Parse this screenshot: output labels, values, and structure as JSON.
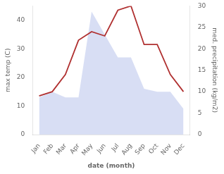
{
  "chart_data": {
    "type": "line",
    "xlabel": "date (month)",
    "ylabel": "max temp (C)",
    "y2label": "med. precipitation (kg/m2)",
    "categories": [
      "Jan",
      "Feb",
      "Mar",
      "Apr",
      "May",
      "Jun",
      "Jul",
      "Aug",
      "Sep",
      "Oct",
      "Nov",
      "Dec"
    ],
    "series": [
      {
        "type": "area",
        "color": "#c8d0f0",
        "values": [
          13,
          15,
          13,
          13,
          43,
          35,
          27,
          27,
          16,
          15,
          15,
          9
        ]
      },
      {
        "type": "line",
        "color": "#b03030",
        "axis": "y2",
        "values": [
          9,
          10,
          14,
          22,
          24,
          23,
          29,
          30,
          21,
          21,
          14,
          10
        ]
      }
    ],
    "ylim": [
      0,
      45
    ],
    "yticks": [
      0,
      10,
      20,
      30,
      40
    ],
    "y2lim": [
      0,
      30
    ],
    "y2ticks": [
      0,
      5,
      10,
      15,
      20,
      25,
      30
    ],
    "grid": false
  }
}
